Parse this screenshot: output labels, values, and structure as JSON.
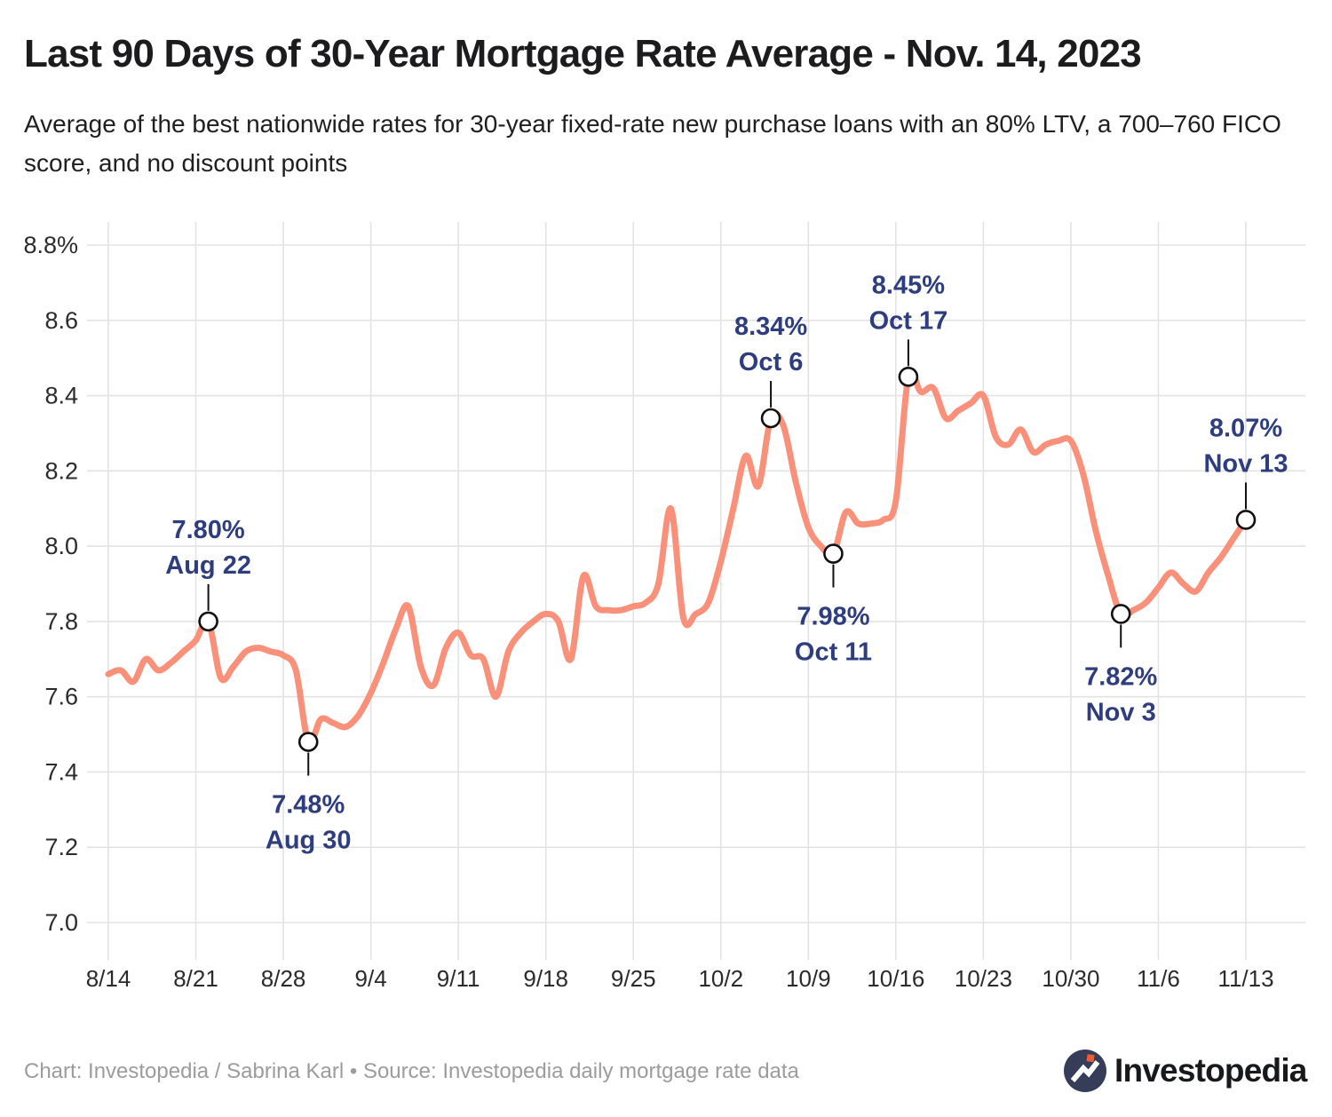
{
  "header": {
    "title": "Last 90 Days of 30-Year Mortgage Rate Average - Nov. 14, 2023",
    "subtitle": "Average of the best nationwide rates for 30-year fixed-rate new purchase loans with an 80% LTV, a 700–760 FICO score, and no discount points"
  },
  "footer": {
    "credit": "Chart: Investopedia / Sabrina Karl • Source: Investopedia daily mortgage rate data",
    "logo_text": "Investopedia"
  },
  "chart_data": {
    "type": "line",
    "title": "Last 90 Days of 30-Year Mortgage Rate Average - Nov. 14, 2023",
    "x_start_label": "8/14",
    "x_end_label": "11/13",
    "x_tick_labels": [
      "8/14",
      "8/21",
      "8/28",
      "9/4",
      "9/11",
      "9/18",
      "9/25",
      "10/2",
      "10/9",
      "10/16",
      "10/23",
      "10/30",
      "11/6",
      "11/13"
    ],
    "y_tick_labels": [
      "8.8%",
      "8.6",
      "8.4",
      "8.2",
      "8.0",
      "7.8",
      "7.6",
      "7.4",
      "7.2",
      "7.0"
    ],
    "y_tick_values": [
      8.8,
      8.6,
      8.4,
      8.2,
      8.0,
      7.8,
      7.6,
      7.4,
      7.2,
      7.0
    ],
    "ylim": [
      7.0,
      8.8
    ],
    "grid": true,
    "line_color": "#f9917a",
    "annotation_color": "#2e3d7d",
    "axis_label_color": "#2b2b2b",
    "grid_color": "#e3e3e3",
    "series": [
      {
        "name": "30-year mortgage rate average (%)",
        "values": [
          7.66,
          7.67,
          7.64,
          7.7,
          7.67,
          7.69,
          7.72,
          7.75,
          7.8,
          7.65,
          7.68,
          7.72,
          7.73,
          7.72,
          7.71,
          7.67,
          7.48,
          7.54,
          7.53,
          7.52,
          7.55,
          7.61,
          7.69,
          7.78,
          7.84,
          7.68,
          7.63,
          7.73,
          7.77,
          7.71,
          7.7,
          7.6,
          7.72,
          7.77,
          7.8,
          7.82,
          7.8,
          7.7,
          7.92,
          7.84,
          7.83,
          7.83,
          7.84,
          7.85,
          7.9,
          8.1,
          7.81,
          7.82,
          7.85,
          7.96,
          8.1,
          8.24,
          8.16,
          8.34,
          8.32,
          8.17,
          8.05,
          8.0,
          7.98,
          8.09,
          8.06,
          8.06,
          8.07,
          8.12,
          8.45,
          8.41,
          8.42,
          8.34,
          8.36,
          8.38,
          8.4,
          8.29,
          8.27,
          8.31,
          8.25,
          8.27,
          8.28,
          8.28,
          8.19,
          8.04,
          7.92,
          7.82,
          7.83,
          7.85,
          7.89,
          7.93,
          7.9,
          7.88,
          7.93,
          7.97,
          8.02,
          8.07
        ]
      }
    ],
    "annotations": [
      {
        "rate_label": "7.80%",
        "date_label": "Aug 22",
        "index": 8,
        "value": 7.8,
        "placement": "above"
      },
      {
        "rate_label": "7.48%",
        "date_label": "Aug 30",
        "index": 16,
        "value": 7.48,
        "placement": "below"
      },
      {
        "rate_label": "8.34%",
        "date_label": "Oct 6",
        "index": 53,
        "value": 8.34,
        "placement": "above"
      },
      {
        "rate_label": "7.98%",
        "date_label": "Oct 11",
        "index": 58,
        "value": 7.98,
        "placement": "below"
      },
      {
        "rate_label": "8.45%",
        "date_label": "Oct 17",
        "index": 64,
        "value": 8.45,
        "placement": "above"
      },
      {
        "rate_label": "7.82%",
        "date_label": "Nov 3",
        "index": 81,
        "value": 7.82,
        "placement": "below"
      },
      {
        "rate_label": "8.07%",
        "date_label": "Nov 13",
        "index": 91,
        "value": 8.07,
        "placement": "above"
      }
    ]
  }
}
